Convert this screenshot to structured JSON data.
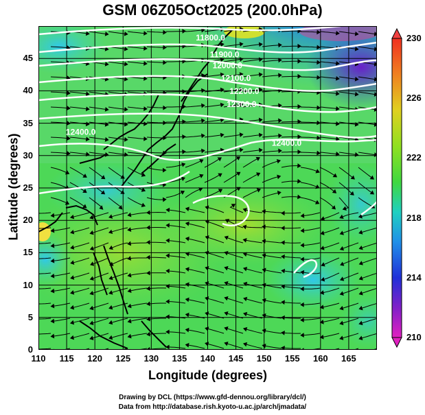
{
  "title": "GSM 06Z05Oct2025 (200.0hPa)",
  "x_axis": {
    "label": "Longitude (degrees)",
    "range": [
      110,
      170
    ],
    "ticks": [
      "110",
      "115",
      "120",
      "125",
      "130",
      "135",
      "140",
      "145",
      "150",
      "155",
      "160",
      "165"
    ]
  },
  "y_axis": {
    "label": "Latitude  (degrees)",
    "range": [
      0,
      50
    ],
    "ticks": [
      "0",
      "5",
      "10",
      "15",
      "20",
      "25",
      "30",
      "35",
      "40",
      "45"
    ]
  },
  "colorbar": {
    "range": [
      210,
      230
    ],
    "ticks": [
      "210",
      "214",
      "218",
      "222",
      "226",
      "230"
    ],
    "colors": [
      "#e020c0",
      "#6020d0",
      "#2040e0",
      "#20a0e8",
      "#20d0c0",
      "#40d040",
      "#90e020",
      "#e0d020",
      "#f09020",
      "#f04020"
    ]
  },
  "contour_labels": [
    {
      "text": "11800.0",
      "lon": 140.5,
      "lat": 47.8
    },
    {
      "text": "11900.0",
      "lon": 143.0,
      "lat": 45.2
    },
    {
      "text": "12000.0",
      "lon": 143.5,
      "lat": 43.5
    },
    {
      "text": "12100.0",
      "lon": 145.0,
      "lat": 41.5
    },
    {
      "text": "12200.0",
      "lon": 146.5,
      "lat": 39.5
    },
    {
      "text": "12300.0",
      "lon": 146.0,
      "lat": 37.5
    },
    {
      "text": "12400.0",
      "lon": 117.5,
      "lat": 33.2
    },
    {
      "text": "12400.0",
      "lon": 154.0,
      "lat": 31.5
    }
  ],
  "credits": [
    "Drawing by DCL (https://www.gfd-dennou.org/library/dcl/)",
    "Data from http://database.rish.kyoto-u.ac.jp/arch/jmadata/"
  ]
}
